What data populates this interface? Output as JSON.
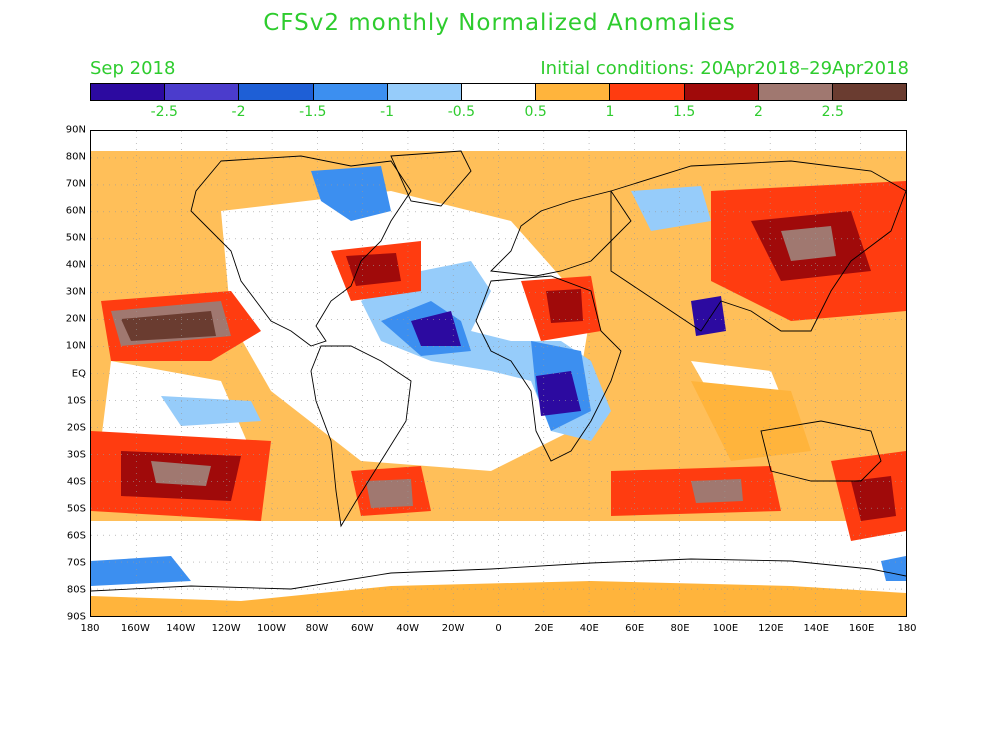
{
  "title": "CFSv2 monthly Normalized Anomalies",
  "month_label": "Sep 2018",
  "initial_conditions": "Initial conditions: 20Apr2018–29Apr2018",
  "colorbar": {
    "colors": [
      "#2c0aa0",
      "#4b3ccc",
      "#1e5fd6",
      "#3c8ff0",
      "#96ccfa",
      "#ffffff",
      "#ffb43c",
      "#ff3c10",
      "#a00a0a",
      "#a07870",
      "#6a3c30"
    ],
    "labels": [
      "-2.5",
      "-2",
      "-1.5",
      "-1",
      "-0.5",
      "0.5",
      "1",
      "1.5",
      "2",
      "2.5"
    ]
  },
  "axes": {
    "lat_labels": [
      "90N",
      "80N",
      "70N",
      "60N",
      "50N",
      "40N",
      "30N",
      "20N",
      "10N",
      "EQ",
      "10S",
      "20S",
      "30S",
      "40S",
      "50S",
      "60S",
      "70S",
      "80S",
      "90S"
    ],
    "lon_labels": [
      "180",
      "160W",
      "140W",
      "120W",
      "100W",
      "80W",
      "60W",
      "40W",
      "20W",
      "0",
      "20E",
      "40E",
      "60E",
      "80E",
      "100E",
      "120E",
      "140E",
      "160E",
      "180"
    ]
  }
}
